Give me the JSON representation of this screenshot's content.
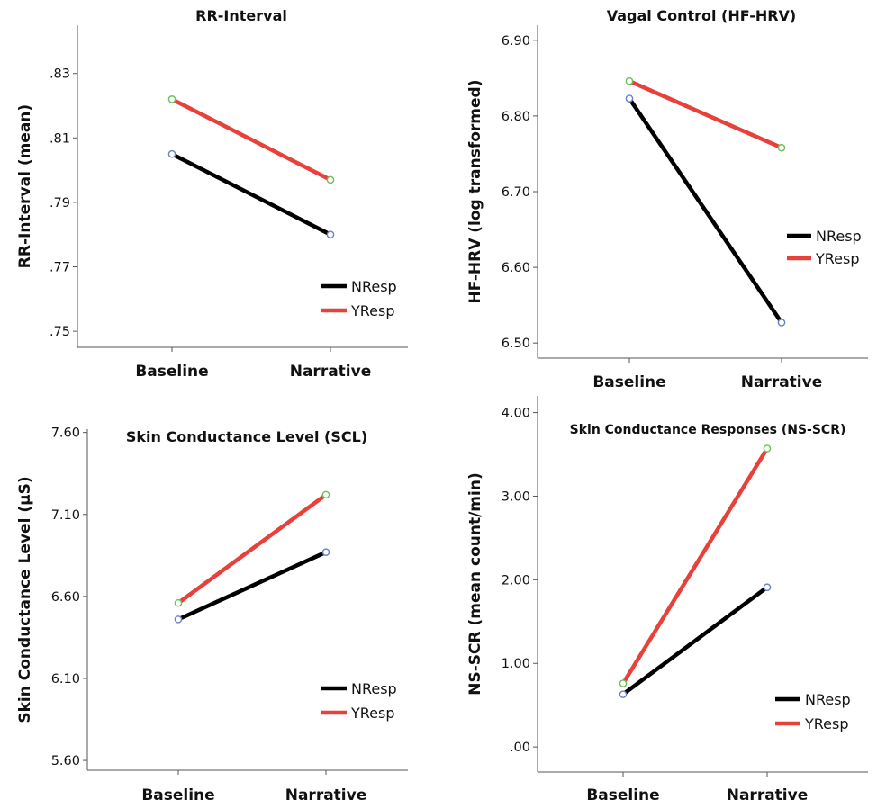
{
  "chart_data": [
    {
      "type": "line",
      "title": "RR-Interval",
      "ylabel": "RR-Interval (mean)",
      "xlabel": "",
      "categories": [
        "Baseline",
        "Narrative"
      ],
      "yticks": [
        ".75",
        ".77",
        ".79",
        ".81",
        ".83"
      ],
      "ylim": [
        0.745,
        0.845
      ],
      "series": [
        {
          "name": "NResp",
          "values": [
            0.805,
            0.78
          ],
          "color": "#000000",
          "marker_color": "#6e7fc4"
        },
        {
          "name": "YResp",
          "values": [
            0.822,
            0.797
          ],
          "color": "#e8403a",
          "marker_color": "#6bbf59"
        }
      ],
      "legend": "bottom-right",
      "grid": false
    },
    {
      "type": "line",
      "title": "Vagal Control (HF-HRV)",
      "ylabel": "HF-HRV (log transformed)",
      "xlabel": "",
      "categories": [
        "Baseline",
        "Narrative"
      ],
      "yticks": [
        "6.50",
        "6.60",
        "6.70",
        "6.80",
        "6.90"
      ],
      "ylim": [
        6.48,
        6.92
      ],
      "series": [
        {
          "name": "NResp",
          "values": [
            6.823,
            6.527
          ],
          "color": "#000000",
          "marker_color": "#6e7fc4"
        },
        {
          "name": "YResp",
          "values": [
            6.846,
            6.758
          ],
          "color": "#e8403a",
          "marker_color": "#6bbf59"
        }
      ],
      "legend": "right",
      "grid": false
    },
    {
      "type": "line",
      "title": "Skin Conductance Level (SCL)",
      "ylabel": "Skin Conductance Level (μS)",
      "xlabel": "",
      "categories": [
        "Baseline",
        "Narrative"
      ],
      "yticks": [
        "5.60",
        "6.10",
        "6.60",
        "7.10",
        "7.60"
      ],
      "ylim": [
        5.54,
        7.62
      ],
      "series": [
        {
          "name": "NResp",
          "values": [
            6.46,
            6.87
          ],
          "color": "#000000",
          "marker_color": "#6e7fc4"
        },
        {
          "name": "YResp",
          "values": [
            6.56,
            7.22
          ],
          "color": "#e8403a",
          "marker_color": "#6bbf59"
        }
      ],
      "legend": "bottom-right",
      "grid": false
    },
    {
      "type": "line",
      "title": "Skin Conductance Responses (NS-SCR)",
      "ylabel": "NS-SCR (mean count/min)",
      "xlabel": "",
      "categories": [
        "Baseline",
        "Narrative"
      ],
      "yticks": [
        ".00",
        "1.00",
        "2.00",
        "3.00",
        "4.00"
      ],
      "ylim": [
        -0.3,
        4.2
      ],
      "series": [
        {
          "name": "NResp",
          "values": [
            0.63,
            1.91
          ],
          "color": "#000000",
          "marker_color": "#6e7fc4"
        },
        {
          "name": "YResp",
          "values": [
            0.76,
            3.57
          ],
          "color": "#e8403a",
          "marker_color": "#6bbf59"
        }
      ],
      "legend": "bottom-right",
      "grid": false
    }
  ]
}
